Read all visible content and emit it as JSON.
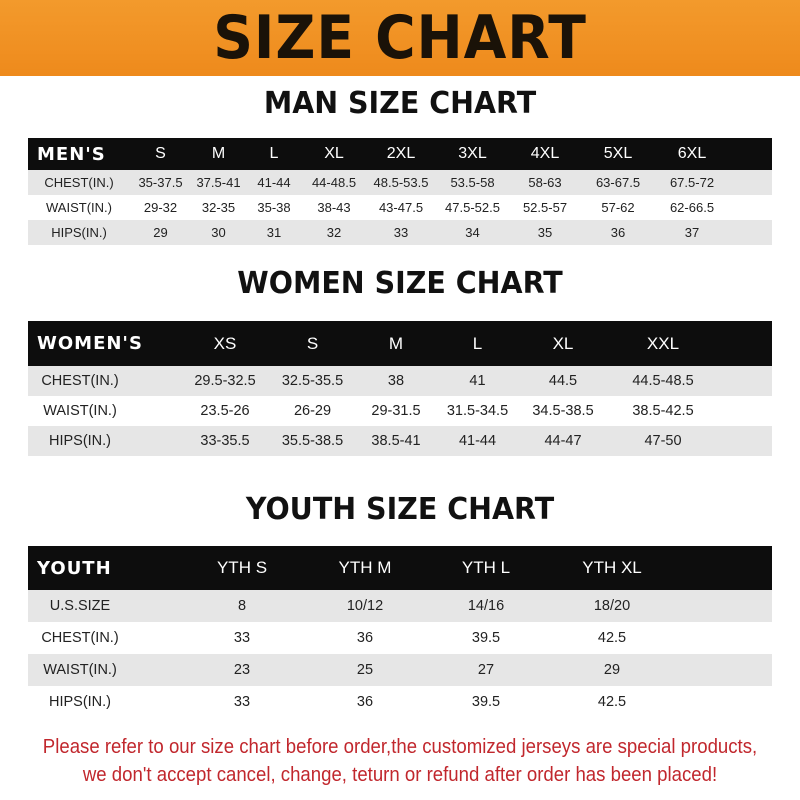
{
  "banner": {
    "title": "SIZE CHART",
    "color": "#f0901f"
  },
  "men": {
    "title": "MAN SIZE CHART",
    "header": [
      "MEN'S",
      "S",
      "M",
      "L",
      "XL",
      "2XL",
      "3XL",
      "4XL",
      "5XL",
      "6XL"
    ],
    "rows": [
      [
        "CHEST(IN.)",
        "35-37.5",
        "37.5-41",
        "41-44",
        "44-48.5",
        "48.5-53.5",
        "53.5-58",
        "58-63",
        "63-67.5",
        "67.5-72"
      ],
      [
        "WAIST(IN.)",
        "29-32",
        "32-35",
        "35-38",
        "38-43",
        "43-47.5",
        "47.5-52.5",
        "52.5-57",
        "57-62",
        "62-66.5"
      ],
      [
        "HIPS(IN.)",
        "29",
        "30",
        "31",
        "32",
        "33",
        "34",
        "35",
        "36",
        "37"
      ]
    ]
  },
  "women": {
    "title": "WOMEN SIZE CHART",
    "header": [
      "WOMEN'S",
      "XS",
      "S",
      "M",
      "L",
      "XL",
      "XXL"
    ],
    "rows": [
      [
        "CHEST(IN.)",
        "29.5-32.5",
        "32.5-35.5",
        "38",
        "41",
        "44.5",
        "44.5-48.5"
      ],
      [
        "WAIST(IN.)",
        "23.5-26",
        "26-29",
        "29-31.5",
        "31.5-34.5",
        "34.5-38.5",
        "38.5-42.5"
      ],
      [
        "HIPS(IN.)",
        "33-35.5",
        "35.5-38.5",
        "38.5-41",
        "41-44",
        "44-47",
        "47-50"
      ]
    ]
  },
  "youth": {
    "title": "YOUTH SIZE CHART",
    "header": [
      "YOUTH",
      "YTH S",
      "YTH M",
      "YTH L",
      "YTH XL"
    ],
    "rows": [
      [
        "U.S.SIZE",
        "8",
        "10/12",
        "14/16",
        "18/20"
      ],
      [
        "CHEST(IN.)",
        "33",
        "36",
        "39.5",
        "42.5"
      ],
      [
        "WAIST(IN.)",
        "23",
        "25",
        "27",
        "29"
      ],
      [
        "HIPS(IN.)",
        "33",
        "36",
        "39.5",
        "42.5"
      ]
    ]
  },
  "notice": {
    "line1": "Please refer to our size chart before order,the customized jerseys are special products,",
    "line2": "we don't accept cancel, change, teturn or refund after order has been placed!",
    "color": "#c1272d"
  }
}
